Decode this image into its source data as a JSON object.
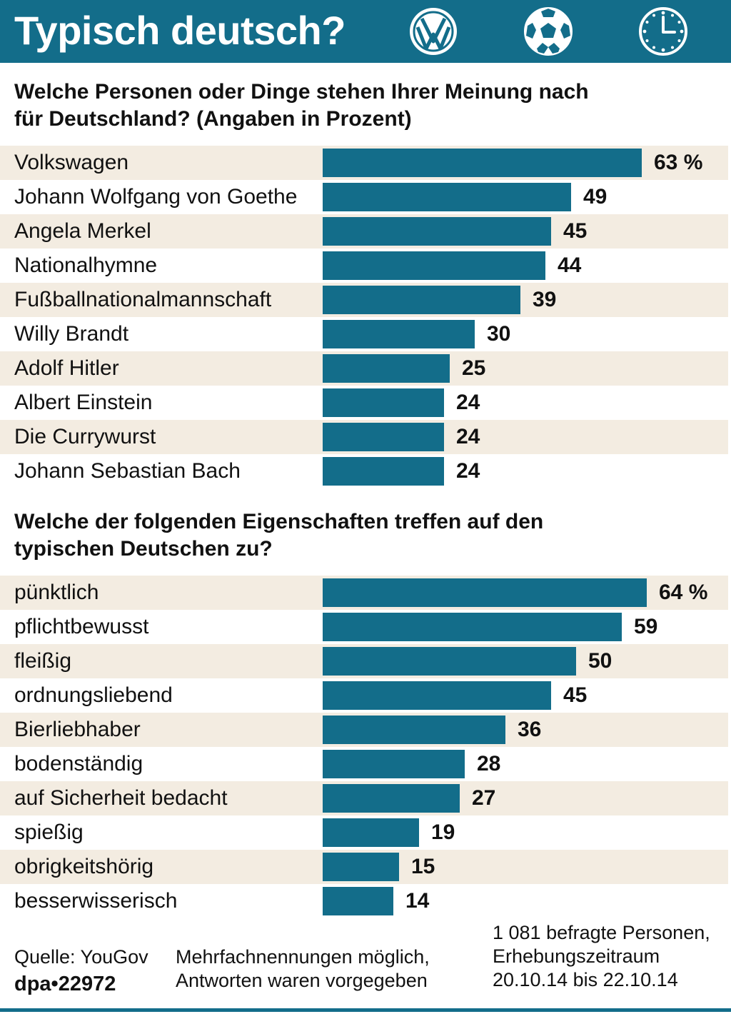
{
  "header": {
    "title": "Typisch deutsch?"
  },
  "colors": {
    "accent": "#136d8a",
    "row_shade": "#f3ece1"
  },
  "chart_data": [
    {
      "type": "bar",
      "orientation": "horizontal",
      "title": "Welche Personen oder Dinge stehen Ihrer Meinung nach für Deutschland? (Angaben in Prozent)",
      "title_lines": [
        "Welche Personen oder Dinge stehen Ihrer Meinung nach",
        "für Deutschland? (Angaben in Prozent)"
      ],
      "unit": "%",
      "xlim": [
        0,
        72
      ],
      "categories": [
        "Volkswagen",
        "Johann Wolfgang von Goethe",
        "Angela Merkel",
        "Nationalhymne",
        "Fußballnationalmannschaft",
        "Willy Brandt",
        "Adolf Hitler",
        "Albert Einstein",
        "Die Currywurst",
        "Johann Sebastian Bach"
      ],
      "values": [
        63,
        49,
        45,
        44,
        39,
        30,
        25,
        24,
        24,
        24
      ],
      "value_labels": [
        "63 %",
        "49",
        "45",
        "44",
        "39",
        "30",
        "25",
        "24",
        "24",
        "24"
      ]
    },
    {
      "type": "bar",
      "orientation": "horizontal",
      "title": "Welche der folgenden Eigenschaften treffen auf den typischen Deutschen zu?",
      "title_lines": [
        "Welche der folgenden Eigenschaften treffen auf den",
        "typischen Deutschen zu?"
      ],
      "unit": "%",
      "xlim": [
        0,
        72
      ],
      "categories": [
        "pünktlich",
        "pflichtbewusst",
        "fleißig",
        "ordnungsliebend",
        "Bierliebhaber",
        "bodenständig",
        "auf Sicherheit bedacht",
        "spießig",
        "obrigkeitshörig",
        "besserwisserisch"
      ],
      "values": [
        64,
        59,
        50,
        45,
        36,
        28,
        27,
        19,
        15,
        14
      ],
      "value_labels": [
        "64 %",
        "59",
        "50",
        "45",
        "36",
        "28",
        "27",
        "19",
        "15",
        "14"
      ]
    }
  ],
  "footer": {
    "source": "Quelle: YouGov",
    "id": "dpa•22972",
    "note_line1": "Mehrfachnennungen möglich,",
    "note_line2": "Antworten waren vorgegeben",
    "sample_line1": "1 081 befragte Personen,",
    "sample_line2": "Erhebungszeitraum",
    "sample_line3": "20.10.14 bis 22.10.14"
  }
}
